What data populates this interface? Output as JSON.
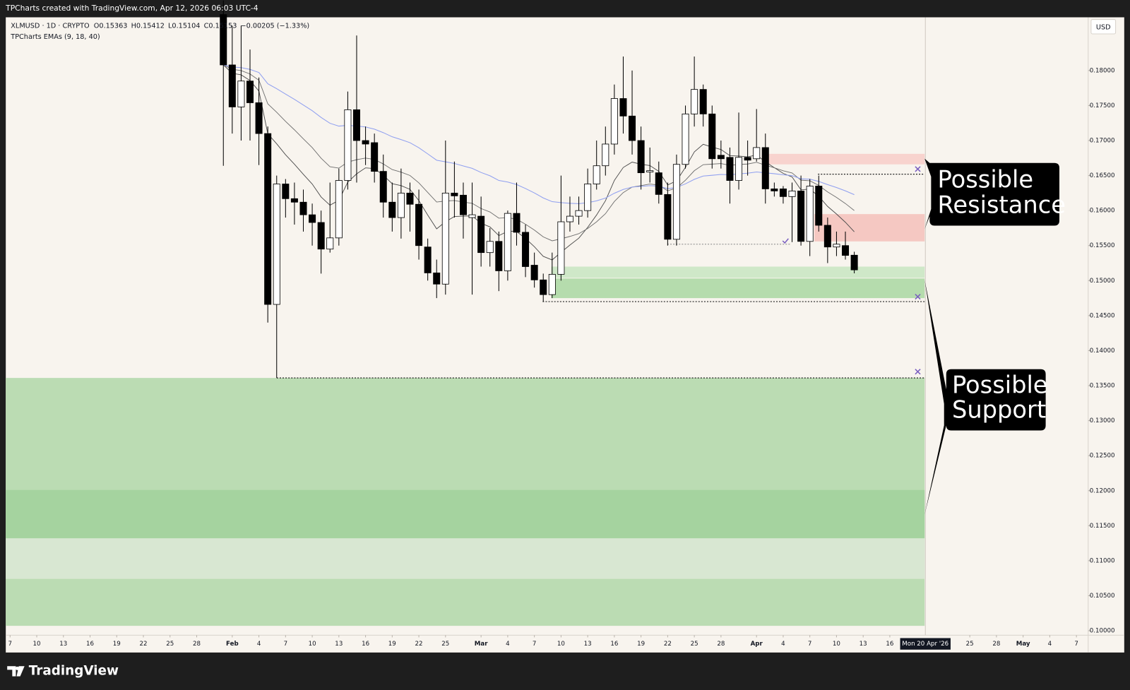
{
  "chart_data": {
    "type": "candlestick",
    "header": "TPCharts created with TradingView.com, Apr 12, 2026 06:03 UTC-4",
    "symbol": "XLMUSD · 1D · CRYPTO",
    "ohlc_prefixes": [
      "O",
      "H",
      "L",
      "C"
    ],
    "change": "−0.00205 (−1.33%)",
    "indicator": {
      "label": "TPCharts EMAs (9, 18, 40)",
      "periods": [
        9,
        18,
        40
      ],
      "colors": [
        "#4a4a4a",
        "#6e6e6e",
        "#8f9ff0"
      ]
    },
    "currency": "USD",
    "footer": "TradingView",
    "up_color": "#ffffff",
    "down_color": "#000000",
    "wick_color": "#000000",
    "x": [
      "2026-01-31",
      "2026-02-01",
      "2026-02-02",
      "2026-02-03",
      "2026-02-04",
      "2026-02-05",
      "2026-02-06",
      "2026-02-07",
      "2026-02-08",
      "2026-02-09",
      "2026-02-10",
      "2026-02-11",
      "2026-02-12",
      "2026-02-13",
      "2026-02-14",
      "2026-02-15",
      "2026-02-16",
      "2026-02-17",
      "2026-02-18",
      "2026-02-19",
      "2026-02-20",
      "2026-02-21",
      "2026-02-22",
      "2026-02-23",
      "2026-02-24",
      "2026-02-25",
      "2026-02-26",
      "2026-02-27",
      "2026-02-28",
      "2026-03-01",
      "2026-03-02",
      "2026-03-03",
      "2026-03-04",
      "2026-03-05",
      "2026-03-06",
      "2026-03-07",
      "2026-03-08",
      "2026-03-09",
      "2026-03-10",
      "2026-03-11",
      "2026-03-12",
      "2026-03-13",
      "2026-03-14",
      "2026-03-15",
      "2026-03-16",
      "2026-03-17",
      "2026-03-18",
      "2026-03-19",
      "2026-03-20",
      "2026-03-21",
      "2026-03-22",
      "2026-03-23",
      "2026-03-24",
      "2026-03-25",
      "2026-03-26",
      "2026-03-27",
      "2026-03-28",
      "2026-03-29",
      "2026-03-30",
      "2026-03-31",
      "2026-04-01",
      "2026-04-02",
      "2026-04-03",
      "2026-04-04",
      "2026-04-05",
      "2026-04-06",
      "2026-04-07",
      "2026-04-08",
      "2026-04-09",
      "2026-04-10",
      "2026-04-11",
      "2026-04-12"
    ],
    "open": [
      0.188,
      0.1808,
      0.1748,
      0.1785,
      0.1754,
      0.171,
      0.1466,
      0.1638,
      0.1617,
      0.1612,
      0.1594,
      0.1583,
      0.1545,
      0.1561,
      0.1643,
      0.1744,
      0.17,
      0.1697,
      0.1656,
      0.1612,
      0.159,
      0.1625,
      0.1609,
      0.1548,
      0.1511,
      0.1495,
      0.1625,
      0.1622,
      0.159,
      0.1592,
      0.154,
      0.1556,
      0.1514,
      0.1596,
      0.1569,
      0.1522,
      0.1501,
      0.148,
      0.1509,
      0.1584,
      0.1592,
      0.16,
      0.1638,
      0.1664,
      0.1695,
      0.176,
      0.1735,
      0.17,
      0.1655,
      0.1654,
      0.1623,
      0.1559,
      0.1666,
      0.1738,
      0.1773,
      0.1738,
      0.1679,
      0.1676,
      0.1643,
      0.1676,
      0.1674,
      0.169,
      0.1631,
      0.1631,
      0.162,
      0.1628,
      0.1556,
      0.1635,
      0.1579,
      0.1548,
      0.155,
      0.15363
    ],
    "high": [
      0.19,
      0.1864,
      0.1864,
      0.183,
      0.179,
      0.172,
      0.165,
      0.1645,
      0.164,
      0.163,
      0.161,
      0.16,
      0.164,
      0.166,
      0.177,
      0.185,
      0.172,
      0.171,
      0.168,
      0.164,
      0.166,
      0.164,
      0.163,
      0.156,
      0.153,
      0.17,
      0.167,
      0.164,
      0.164,
      0.162,
      0.1575,
      0.157,
      0.16,
      0.164,
      0.158,
      0.154,
      0.151,
      0.154,
      0.165,
      0.162,
      0.162,
      0.166,
      0.17,
      0.172,
      0.178,
      0.182,
      0.18,
      0.172,
      0.169,
      0.167,
      0.164,
      0.168,
      0.175,
      0.182,
      0.178,
      0.175,
      0.17,
      0.169,
      0.174,
      0.17,
      0.1745,
      0.171,
      0.164,
      0.1635,
      0.164,
      0.165,
      0.1645,
      0.165,
      0.159,
      0.157,
      0.157,
      0.15412
    ],
    "low": [
      0.1664,
      0.171,
      0.17,
      0.17,
      0.1665,
      0.144,
      0.1361,
      0.159,
      0.158,
      0.157,
      0.155,
      0.151,
      0.154,
      0.155,
      0.163,
      0.164,
      0.1665,
      0.164,
      0.159,
      0.157,
      0.156,
      0.157,
      0.153,
      0.15,
      0.1475,
      0.148,
      0.159,
      0.156,
      0.148,
      0.152,
      0.152,
      0.1485,
      0.15,
      0.155,
      0.1505,
      0.149,
      0.147,
      0.1475,
      0.15,
      0.157,
      0.158,
      0.159,
      0.163,
      0.165,
      0.168,
      0.171,
      0.168,
      0.163,
      0.164,
      0.161,
      0.155,
      0.155,
      0.166,
      0.172,
      0.172,
      0.166,
      0.166,
      0.161,
      0.163,
      0.165,
      0.167,
      0.161,
      0.162,
      0.161,
      0.1555,
      0.155,
      0.1535,
      0.157,
      0.1525,
      0.1535,
      0.153,
      0.15104
    ],
    "close": [
      0.1808,
      0.1748,
      0.1785,
      0.1754,
      0.171,
      0.1466,
      0.1638,
      0.1617,
      0.1612,
      0.1594,
      0.1583,
      0.1545,
      0.1561,
      0.1643,
      0.1744,
      0.17,
      0.1695,
      0.1656,
      0.1612,
      0.159,
      0.1625,
      0.1609,
      0.155,
      0.1511,
      0.1495,
      0.1625,
      0.1621,
      0.1594,
      0.1594,
      0.154,
      0.1556,
      0.1514,
      0.1596,
      0.1569,
      0.152,
      0.1501,
      0.148,
      0.1509,
      0.1584,
      0.1592,
      0.16,
      0.1638,
      0.1664,
      0.1695,
      0.176,
      0.1735,
      0.17,
      0.1654,
      0.1657,
      0.1623,
      0.1559,
      0.1666,
      0.1738,
      0.1773,
      0.1738,
      0.1674,
      0.1674,
      0.1643,
      0.1676,
      0.1672,
      0.169,
      0.1631,
      0.1628,
      0.162,
      0.1628,
      0.1556,
      0.1635,
      0.1579,
      0.1548,
      0.1552,
      0.1536,
      0.15153
    ],
    "zones": [
      {
        "top": 0.1361,
        "bottom": 0.1007,
        "color": "#bbdcb3"
      },
      {
        "top": 0.1201,
        "bottom": 0.1132,
        "color": "#a5d39f"
      },
      {
        "top": 0.1132,
        "bottom": 0.1074,
        "color": "#d8e7d2"
      },
      {
        "top": 0.152,
        "bottom": 0.1504,
        "color": "#cfe8c8"
      },
      {
        "top": 0.1503,
        "bottom": 0.1475,
        "color": "#b5dcad"
      },
      {
        "top": 0.1681,
        "bottom": 0.1666,
        "color": "#f8d3ce"
      },
      {
        "top": 0.1595,
        "bottom": 0.1556,
        "color": "#f5c8c2"
      }
    ],
    "levels": [
      {
        "value": 0.1652,
        "color": "#222222"
      },
      {
        "value": 0.147,
        "color": "#222222"
      },
      {
        "value": 0.1361,
        "color": "#222222"
      },
      {
        "value": 0.1552,
        "color": "#9a9a9a"
      }
    ],
    "annotations": [
      {
        "lines": [
          "Possible",
          "Resistance"
        ]
      },
      {
        "lines": [
          "Possible",
          "Support"
        ]
      }
    ],
    "crosshair": {
      "date": "2026-04-20",
      "label": "Mon 20 Apr '26"
    },
    "xlim": [
      "2026-01-07",
      "2026-05-08"
    ],
    "ylim": [
      0.1007,
      0.1876
    ],
    "xticks": [
      {
        "value": "2026-01-07",
        "label": "7"
      },
      {
        "value": "2026-01-10",
        "label": "10"
      },
      {
        "value": "2026-01-13",
        "label": "13"
      },
      {
        "value": "2026-01-16",
        "label": "16"
      },
      {
        "value": "2026-01-19",
        "label": "19"
      },
      {
        "value": "2026-01-22",
        "label": "22"
      },
      {
        "value": "2026-01-25",
        "label": "25"
      },
      {
        "value": "2026-01-28",
        "label": "28"
      },
      {
        "value": "2026-02-01",
        "label": "Feb"
      },
      {
        "value": "2026-02-04",
        "label": "4"
      },
      {
        "value": "2026-02-07",
        "label": "7"
      },
      {
        "value": "2026-02-10",
        "label": "10"
      },
      {
        "value": "2026-02-13",
        "label": "13"
      },
      {
        "value": "2026-02-16",
        "label": "16"
      },
      {
        "value": "2026-02-19",
        "label": "19"
      },
      {
        "value": "2026-02-22",
        "label": "22"
      },
      {
        "value": "2026-02-25",
        "label": "25"
      },
      {
        "value": "2026-03-01",
        "label": "Mar"
      },
      {
        "value": "2026-03-04",
        "label": "4"
      },
      {
        "value": "2026-03-07",
        "label": "7"
      },
      {
        "value": "2026-03-10",
        "label": "10"
      },
      {
        "value": "2026-03-13",
        "label": "13"
      },
      {
        "value": "2026-03-16",
        "label": "16"
      },
      {
        "value": "2026-03-19",
        "label": "19"
      },
      {
        "value": "2026-03-22",
        "label": "22"
      },
      {
        "value": "2026-03-25",
        "label": "25"
      },
      {
        "value": "2026-03-28",
        "label": "28"
      },
      {
        "value": "2026-04-01",
        "label": "Apr"
      },
      {
        "value": "2026-04-04",
        "label": "4"
      },
      {
        "value": "2026-04-07",
        "label": "7"
      },
      {
        "value": "2026-04-10",
        "label": "10"
      },
      {
        "value": "2026-04-13",
        "label": "13"
      },
      {
        "value": "2026-04-16",
        "label": "16"
      },
      {
        "value": "2026-04-25",
        "label": "25"
      },
      {
        "value": "2026-04-28",
        "label": "28"
      },
      {
        "value": "2026-05-01",
        "label": "May"
      },
      {
        "value": "2026-05-04",
        "label": "4"
      },
      {
        "value": "2026-05-07",
        "label": "7"
      }
    ],
    "yticks": [
      {
        "value": 0.1,
        "label": "0.10000"
      },
      {
        "value": 0.105,
        "label": "0.10500"
      },
      {
        "value": 0.11,
        "label": "0.11000"
      },
      {
        "value": 0.115,
        "label": "0.11500"
      },
      {
        "value": 0.12,
        "label": "0.12000"
      },
      {
        "value": 0.125,
        "label": "0.12500"
      },
      {
        "value": 0.13,
        "label": "0.13000"
      },
      {
        "value": 0.135,
        "label": "0.13500"
      },
      {
        "value": 0.14,
        "label": "0.14000"
      },
      {
        "value": 0.145,
        "label": "0.14500"
      },
      {
        "value": 0.15,
        "label": "0.15000"
      },
      {
        "value": 0.155,
        "label": "0.15500"
      },
      {
        "value": 0.16,
        "label": "0.16000"
      },
      {
        "value": 0.165,
        "label": "0.16500"
      },
      {
        "value": 0.17,
        "label": "0.17000"
      },
      {
        "value": 0.175,
        "label": "0.17500"
      },
      {
        "value": 0.18,
        "label": "0.18000"
      }
    ]
  }
}
